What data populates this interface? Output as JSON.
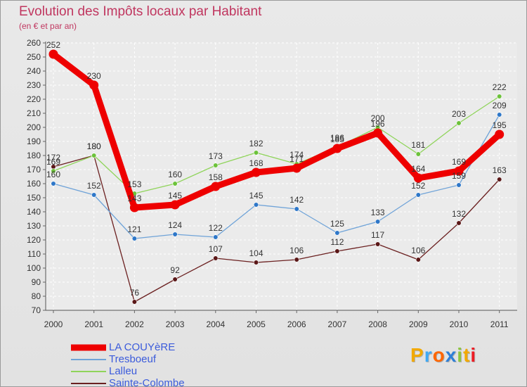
{
  "title": "Evolution des Impôts locaux par Habitant",
  "subtitle": "(en € et par an)",
  "brand": {
    "letters": [
      "P",
      "r",
      "o",
      "x",
      "i",
      "t",
      "i"
    ],
    "colors": [
      "#f2a900",
      "#3fa9f5",
      "#ff6600",
      "#2e7fd8",
      "#8dc63f",
      "#f2a900",
      "#ed1c24"
    ]
  },
  "chart_data": {
    "type": "line",
    "title": "Evolution des Impôts locaux par Habitant",
    "subtitle": "(en € et par an)",
    "xlabel": "",
    "ylabel": "",
    "x": [
      "2000",
      "2001",
      "2002",
      "2003",
      "2004",
      "2005",
      "2006",
      "2007",
      "2008",
      "2009",
      "2010",
      "2011"
    ],
    "y_ticks": [
      "70",
      "80",
      "90",
      "100",
      "110",
      "120",
      "130",
      "140",
      "150",
      "160",
      "170",
      "180",
      "190",
      "200",
      "210",
      "220",
      "230",
      "240",
      "250",
      "260"
    ],
    "ylim": [
      70,
      260
    ],
    "grid": true,
    "legend_position": "bottom-left",
    "series": [
      {
        "name": "Sainte-Colombe",
        "color": "#6b2020",
        "dot": "#5a1717",
        "values": [
          172,
          180,
          76,
          92,
          107,
          104,
          106,
          112,
          117,
          106,
          132,
          163
        ],
        "labels": [
          "172",
          "180",
          "76",
          "92",
          "107",
          "104",
          "106",
          "112",
          "117",
          "106",
          "132",
          "163"
        ]
      },
      {
        "name": "Tresboeuf",
        "color": "#6fa3d8",
        "dot": "#2e77c8",
        "values": [
          160,
          152,
          121,
          124,
          122,
          145,
          142,
          125,
          133,
          152,
          159,
          209
        ],
        "labels": [
          "160",
          "152",
          "121",
          "124",
          "122",
          "145",
          "142",
          "125",
          "133",
          "152",
          "159",
          "209"
        ]
      },
      {
        "name": "Lalleu",
        "color": "#8fd45a",
        "dot": "#6cc23a",
        "values": [
          169,
          180,
          153,
          160,
          173,
          182,
          174,
          186,
          200,
          181,
          203,
          222
        ],
        "labels": [
          "169",
          "180",
          "153",
          "160",
          "173",
          "182",
          "174",
          "186",
          "200",
          "181",
          "203",
          "222"
        ]
      },
      {
        "name": "LA COUYèRE",
        "color": "#ee0000",
        "dot": "#ee0000",
        "values": [
          252,
          230,
          143,
          145,
          158,
          168,
          171,
          185,
          196,
          164,
          169,
          195
        ],
        "labels": [
          "252",
          "230",
          "143",
          "145",
          "158",
          "168",
          "171",
          "185",
          "196",
          "164",
          "169",
          "195"
        ]
      }
    ],
    "legend": [
      {
        "name": "LA COUYèRE",
        "color": "#ee0000",
        "weight": "bold"
      },
      {
        "name": "Tresboeuf",
        "color": "#6fa3d8",
        "weight": "thin"
      },
      {
        "name": "Lalleu",
        "color": "#8fd45a",
        "weight": "thin"
      },
      {
        "name": "Sainte-Colombe",
        "color": "#6b2020",
        "weight": "thin"
      }
    ]
  }
}
